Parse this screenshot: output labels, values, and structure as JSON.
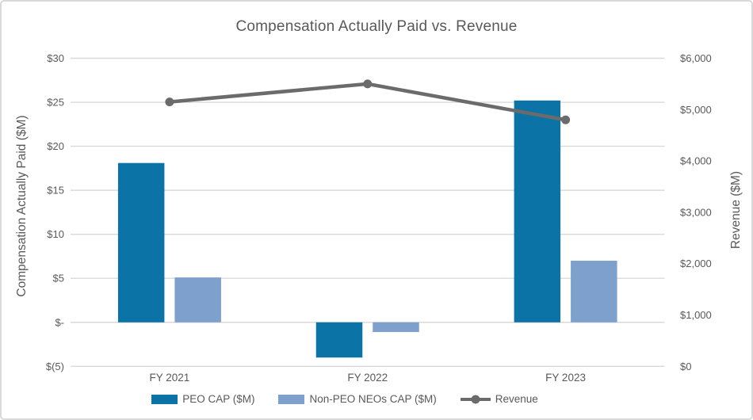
{
  "chart_data": {
    "type": "bar",
    "subtype": "combo-bar-line-dual-axis",
    "title": "Compensation Actually Paid vs. Revenue",
    "categories": [
      "FY 2021",
      "FY 2022",
      "FY 2023"
    ],
    "series": [
      {
        "id": "peo-cap",
        "name": "PEO CAP ($M)",
        "type": "bar",
        "axis": "left",
        "color": "#0B73A6",
        "values": [
          18.1,
          -4.0,
          25.2
        ]
      },
      {
        "id": "non-peo-neos-cap",
        "name": "Non-PEO NEOs CAP ($M)",
        "type": "bar",
        "axis": "left",
        "color": "#7EA0CC",
        "values": [
          5.1,
          -1.1,
          7.0
        ]
      },
      {
        "id": "revenue",
        "name": "Revenue",
        "type": "line",
        "axis": "right",
        "color": "#6B6B6B",
        "values": [
          5150,
          5500,
          4800
        ]
      }
    ],
    "left_axis": {
      "title": "Compensation Actually Paid ($M)",
      "min": -5,
      "max": 30,
      "step": 5,
      "tick_values": [
        30,
        25,
        20,
        15,
        10,
        5,
        0,
        -5
      ],
      "tick_labels": [
        "$30",
        "$25",
        "$20",
        "$15",
        "$10",
        "$5",
        "$-",
        "$(5)"
      ]
    },
    "right_axis": {
      "title": "Revenue ($M)",
      "min": 0,
      "max": 6000,
      "step": 1000,
      "tick_values": [
        6000,
        5000,
        4000,
        3000,
        2000,
        1000,
        0
      ],
      "tick_labels": [
        "$6,000",
        "$5,000",
        "$4,000",
        "$3,000",
        "$2,000",
        "$1,000",
        "$0"
      ]
    },
    "legend": {
      "position": "bottom",
      "items": [
        "PEO CAP ($M)",
        "Non-PEO NEOs CAP ($M)",
        "Revenue"
      ]
    },
    "grid": true,
    "colors": {
      "gridline": "#D9D9D9",
      "text": "#595959",
      "frame_border": "#D9D9D9",
      "background": "#FFFFFF"
    }
  }
}
